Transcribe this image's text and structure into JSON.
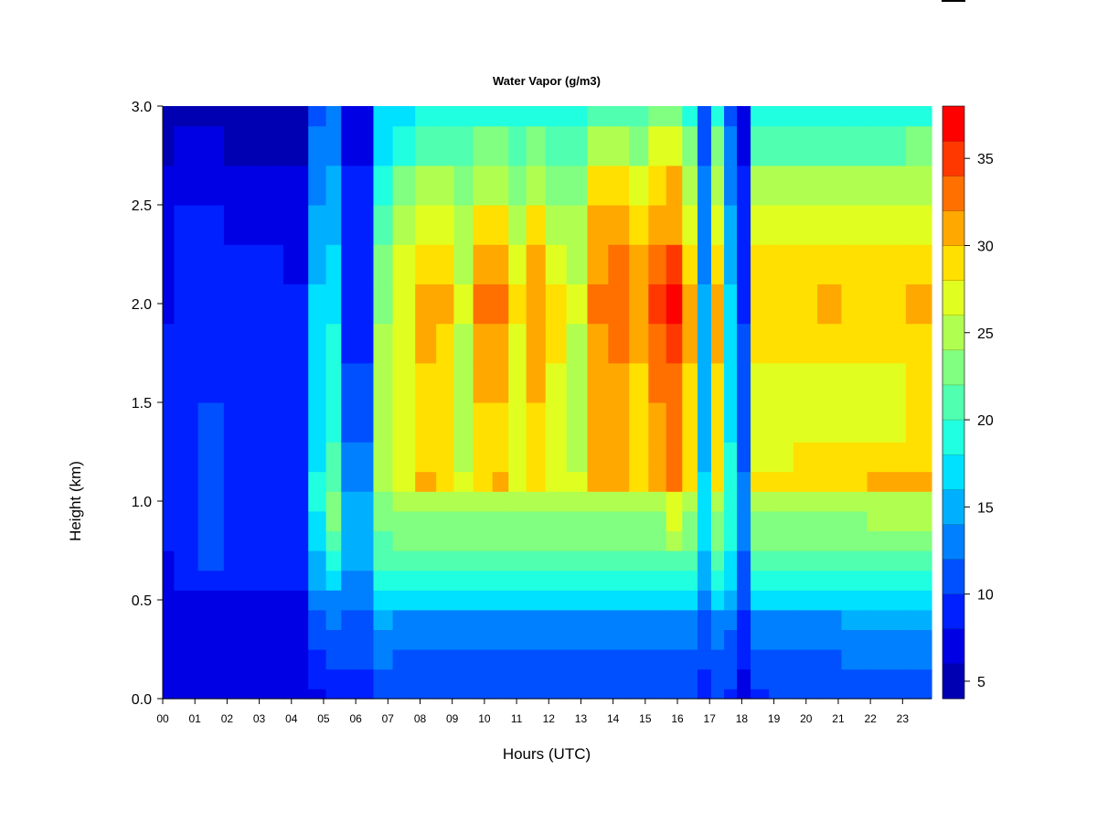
{
  "chart_data": {
    "type": "heatmap",
    "title": "Water Vapor (g/m3)",
    "xlabel": "Hours (UTC)",
    "ylabel": "Height (km)",
    "x_ticks": [
      "00",
      "01",
      "02",
      "03",
      "04",
      "05",
      "06",
      "07",
      "08",
      "09",
      "10",
      "11",
      "12",
      "13",
      "14",
      "15",
      "16",
      "17",
      "18",
      "19",
      "20",
      "21",
      "22",
      "23"
    ],
    "y_ticks": [
      "0.0",
      "0.5",
      "1.0",
      "1.5",
      "2.0",
      "2.5",
      "3.0"
    ],
    "xlim": [
      0,
      23.9
    ],
    "ylim": [
      0,
      3.0
    ],
    "colorbar": {
      "ticks": [
        "5",
        "10",
        "15",
        "20",
        "25",
        "30",
        "35"
      ],
      "tick_values": [
        5,
        10,
        15,
        20,
        25,
        30,
        35
      ],
      "range": [
        4,
        38
      ],
      "levels": [
        4,
        6,
        8,
        10,
        12,
        14,
        16,
        18,
        20,
        22,
        24,
        26,
        28,
        30,
        32,
        34,
        36,
        38
      ],
      "colors": [
        "#00007f",
        "#0000b2",
        "#0000e5",
        "#0020ff",
        "#0050ff",
        "#0080ff",
        "#00b0ff",
        "#00e0ff",
        "#20ffdf",
        "#50ffaf",
        "#80ff80",
        "#b0ff50",
        "#e0ff20",
        "#ffe000",
        "#ffa800",
        "#ff7000",
        "#ff3800",
        "#ff0000",
        "#c00000",
        "#800000"
      ]
    },
    "height_levels_km": [
      0,
      0.1,
      0.2,
      0.3,
      0.4,
      0.5,
      0.6,
      0.7,
      0.8,
      0.9,
      1.0,
      1.1,
      1.2,
      1.4,
      1.6,
      1.8,
      2.0,
      2.2,
      2.4,
      2.6,
      2.8,
      3.0
    ],
    "columns": [
      {
        "t": 0.0,
        "values": [
          6,
          7,
          7,
          7,
          7,
          7,
          7,
          7,
          8,
          8,
          8,
          8,
          8,
          8,
          8,
          8,
          7,
          7,
          6,
          6,
          5,
          5
        ]
      },
      {
        "t": 0.7,
        "values": [
          7,
          7,
          7,
          7,
          7,
          7,
          8,
          9,
          9,
          9,
          9,
          9,
          9,
          9,
          9,
          9,
          9,
          8,
          8,
          7,
          6,
          5
        ]
      },
      {
        "t": 1.5,
        "values": [
          7,
          7,
          7,
          7,
          7,
          7,
          9,
          10,
          10,
          10,
          10,
          10,
          10,
          10,
          9,
          9,
          9,
          9,
          8,
          7,
          6,
          5
        ]
      },
      {
        "t": 2.3,
        "values": [
          7,
          7,
          7,
          7,
          7,
          7,
          8,
          8,
          8,
          8,
          9,
          9,
          9,
          9,
          9,
          8,
          8,
          8,
          7,
          6,
          5,
          5
        ]
      },
      {
        "t": 3.3,
        "values": [
          7,
          7,
          7,
          7,
          7,
          7,
          8,
          9,
          9,
          9,
          9,
          9,
          9,
          9,
          9,
          8,
          8,
          8,
          7,
          6,
          5,
          5
        ]
      },
      {
        "t": 4.2,
        "values": [
          7,
          7,
          7,
          7,
          7,
          7,
          8,
          8,
          8,
          8,
          8,
          8,
          8,
          8,
          8,
          8,
          8,
          7,
          7,
          6,
          5,
          5
        ]
      },
      {
        "t": 4.85,
        "values": [
          7,
          8,
          9,
          10,
          11,
          12,
          14,
          15,
          16,
          17,
          18,
          18,
          17,
          17,
          17,
          16,
          16,
          15,
          14,
          13,
          12,
          11
        ]
      },
      {
        "t": 5.3,
        "values": [
          8,
          9,
          10,
          11,
          12,
          13,
          16,
          19,
          21,
          22,
          22,
          21,
          20,
          19,
          19,
          18,
          17,
          16,
          15,
          14,
          13,
          12
        ]
      },
      {
        "t": 5.8,
        "values": [
          8,
          9,
          10,
          10,
          11,
          12,
          13,
          14,
          15,
          15,
          14,
          13,
          12,
          11,
          10,
          9,
          9,
          8,
          8,
          8,
          7,
          7
        ]
      },
      {
        "t": 6.3,
        "values": [
          8,
          9,
          10,
          10,
          11,
          12,
          13,
          14,
          15,
          15,
          14,
          13,
          12,
          11,
          10,
          9,
          9,
          8,
          8,
          8,
          7,
          7
        ]
      },
      {
        "t": 6.8,
        "values": [
          10,
          11,
          12,
          13,
          14,
          16,
          18,
          20,
          21,
          22,
          23,
          25,
          25,
          25,
          25,
          24,
          23,
          22,
          20,
          19,
          17,
          16
        ]
      },
      {
        "t": 7.5,
        "values": [
          10,
          11,
          11,
          12,
          13,
          16,
          18,
          20,
          22,
          23,
          24,
          27,
          27,
          27,
          27,
          27,
          27,
          26,
          24,
          22,
          19,
          17
        ]
      },
      {
        "t": 8.2,
        "values": [
          10,
          11,
          11,
          12,
          13,
          16,
          18,
          20,
          22,
          23,
          24,
          30,
          28,
          28,
          29,
          30,
          31,
          28,
          26,
          24,
          21,
          18
        ]
      },
      {
        "t": 8.8,
        "values": [
          10,
          11,
          11,
          12,
          13,
          16,
          18,
          20,
          22,
          23,
          24,
          29,
          28,
          28,
          29,
          29,
          30,
          28,
          26,
          24,
          21,
          18
        ]
      },
      {
        "t": 9.3,
        "values": [
          10,
          11,
          11,
          12,
          13,
          16,
          18,
          20,
          22,
          23,
          24,
          26,
          25,
          25,
          25,
          25,
          26,
          25,
          24,
          22,
          20,
          18
        ]
      },
      {
        "t": 10.0,
        "values": [
          10,
          11,
          11,
          12,
          13,
          16,
          18,
          20,
          22,
          23,
          24,
          29,
          29,
          29,
          30,
          31,
          32,
          30,
          28,
          25,
          22,
          18
        ]
      },
      {
        "t": 10.5,
        "values": [
          10,
          11,
          11,
          12,
          13,
          16,
          18,
          20,
          22,
          23,
          24,
          30,
          29,
          29,
          30,
          31,
          32,
          30,
          28,
          25,
          22,
          18
        ]
      },
      {
        "t": 11.0,
        "values": [
          10,
          11,
          11,
          12,
          13,
          16,
          18,
          20,
          22,
          23,
          24,
          27,
          26,
          26,
          27,
          27,
          28,
          27,
          25,
          23,
          21,
          18
        ]
      },
      {
        "t": 11.6,
        "values": [
          10,
          11,
          11,
          12,
          13,
          16,
          18,
          20,
          22,
          23,
          24,
          29,
          29,
          29,
          30,
          31,
          31,
          30,
          28,
          25,
          22,
          19
        ]
      },
      {
        "t": 12.2,
        "values": [
          10,
          11,
          11,
          12,
          13,
          16,
          18,
          20,
          22,
          23,
          24,
          27,
          26,
          26,
          27,
          28,
          28,
          27,
          25,
          23,
          21,
          18
        ]
      },
      {
        "t": 12.9,
        "values": [
          10,
          11,
          11,
          12,
          13,
          16,
          18,
          20,
          22,
          23,
          24,
          26,
          25,
          25,
          25,
          25,
          26,
          25,
          24,
          22,
          20,
          18
        ]
      },
      {
        "t": 13.5,
        "values": [
          10,
          11,
          11,
          12,
          13,
          16,
          18,
          20,
          22,
          23,
          24,
          30,
          30,
          30,
          30,
          31,
          33,
          31,
          30,
          28,
          25,
          21
        ]
      },
      {
        "t": 14.2,
        "values": [
          10,
          11,
          11,
          12,
          13,
          16,
          18,
          20,
          22,
          23,
          24,
          30,
          30,
          30,
          31,
          32,
          33,
          32,
          30,
          28,
          25,
          21
        ]
      },
      {
        "t": 14.8,
        "values": [
          10,
          11,
          11,
          12,
          13,
          16,
          18,
          20,
          22,
          23,
          24,
          29,
          28,
          28,
          29,
          30,
          31,
          30,
          28,
          26,
          23,
          20
        ]
      },
      {
        "t": 15.4,
        "values": [
          10,
          11,
          11,
          12,
          13,
          16,
          18,
          20,
          22,
          23,
          24,
          31,
          31,
          31,
          32,
          33,
          34,
          32,
          30,
          29,
          26,
          22
        ]
      },
      {
        "t": 15.9,
        "values": [
          10,
          11,
          11,
          12,
          13,
          16,
          18,
          20,
          24,
          26,
          27,
          33,
          33,
          32,
          33,
          34,
          36,
          34,
          31,
          30,
          27,
          22
        ]
      },
      {
        "t": 16.4,
        "values": [
          10,
          11,
          11,
          12,
          13,
          16,
          18,
          20,
          22,
          23,
          24,
          29,
          28,
          28,
          29,
          30,
          31,
          29,
          27,
          25,
          22,
          19
        ]
      },
      {
        "t": 16.85,
        "values": [
          8,
          9,
          10,
          10,
          11,
          12,
          14,
          15,
          16,
          16,
          16,
          16,
          15,
          15,
          15,
          14,
          14,
          13,
          12,
          12,
          11,
          10
        ]
      },
      {
        "t": 17.25,
        "values": [
          10,
          11,
          11,
          12,
          13,
          16,
          18,
          20,
          22,
          23,
          24,
          29,
          28,
          28,
          29,
          30,
          31,
          29,
          27,
          25,
          22,
          19
        ]
      },
      {
        "t": 17.65,
        "values": [
          9,
          10,
          11,
          11,
          12,
          14,
          16,
          17,
          18,
          18,
          18,
          18,
          18,
          17,
          17,
          16,
          16,
          15,
          14,
          13,
          12,
          11
        ]
      },
      {
        "t": 18.05,
        "values": [
          7,
          7,
          8,
          8,
          9,
          10,
          11,
          11,
          12,
          12,
          12,
          12,
          11,
          11,
          10,
          10,
          9,
          9,
          8,
          8,
          7,
          7
        ]
      },
      {
        "t": 18.5,
        "values": [
          9,
          10,
          11,
          12,
          13,
          16,
          18,
          20,
          22,
          23,
          24,
          28,
          27,
          26,
          27,
          28,
          29,
          28,
          26,
          24,
          21,
          18
        ]
      },
      {
        "t": 19.2,
        "values": [
          10,
          11,
          11,
          12,
          13,
          16,
          18,
          20,
          22,
          23,
          24,
          28,
          27,
          27,
          27,
          28,
          29,
          28,
          26,
          24,
          21,
          18
        ]
      },
      {
        "t": 20.0,
        "values": [
          10,
          11,
          11,
          12,
          13,
          16,
          18,
          20,
          22,
          23,
          24,
          29,
          28,
          27,
          27,
          28,
          29,
          28,
          26,
          24,
          21,
          18
        ]
      },
      {
        "t": 20.7,
        "values": [
          10,
          11,
          11,
          12,
          13,
          16,
          18,
          20,
          22,
          23,
          24,
          29,
          28,
          27,
          27,
          28,
          30,
          28,
          26,
          24,
          21,
          18
        ]
      },
      {
        "t": 21.5,
        "values": [
          10,
          11,
          12,
          13,
          14,
          16,
          18,
          20,
          22,
          23,
          24,
          29,
          28,
          27,
          27,
          28,
          29,
          28,
          26,
          24,
          21,
          18
        ]
      },
      {
        "t": 22.3,
        "values": [
          10,
          11,
          12,
          13,
          14,
          17,
          19,
          21,
          23,
          24,
          25,
          30,
          28,
          27,
          27,
          28,
          29,
          28,
          26,
          24,
          21,
          18
        ]
      },
      {
        "t": 23.9,
        "values": [
          10,
          11,
          12,
          13,
          14,
          17,
          19,
          21,
          23,
          24,
          25,
          31,
          29,
          28,
          28,
          29,
          30,
          28,
          26,
          24,
          22,
          18
        ]
      }
    ]
  }
}
